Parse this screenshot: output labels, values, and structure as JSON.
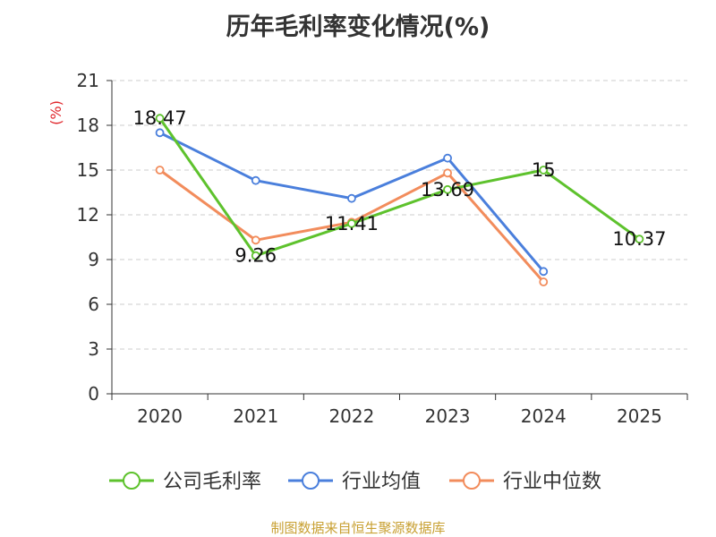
{
  "chart_data": {
    "type": "line",
    "title": "历年毛利率变化情况(%)",
    "ylabel": "(%)",
    "categories": [
      "2020",
      "2021",
      "2022",
      "2023",
      "2024",
      "2025"
    ],
    "ylim": [
      0,
      21
    ],
    "yticks": [
      0,
      3,
      6,
      9,
      12,
      15,
      18,
      21
    ],
    "grid": true,
    "legend_position": "bottom",
    "series": [
      {
        "name": "公司毛利率",
        "color": "#5ec22d",
        "values": [
          18.47,
          9.26,
          11.41,
          13.69,
          15,
          10.37
        ],
        "labels": [
          "18.47",
          "9.26",
          "11.41",
          "13.69",
          "15",
          "10.37"
        ]
      },
      {
        "name": "行业均值",
        "color": "#4a7fdc",
        "values": [
          17.5,
          14.3,
          13.1,
          15.8,
          8.2,
          null
        ]
      },
      {
        "name": "行业中位数",
        "color": "#f28c5c",
        "values": [
          15.0,
          10.3,
          11.5,
          14.8,
          7.5,
          null
        ]
      }
    ]
  },
  "source_note": "制图数据来自恒生聚源数据库"
}
